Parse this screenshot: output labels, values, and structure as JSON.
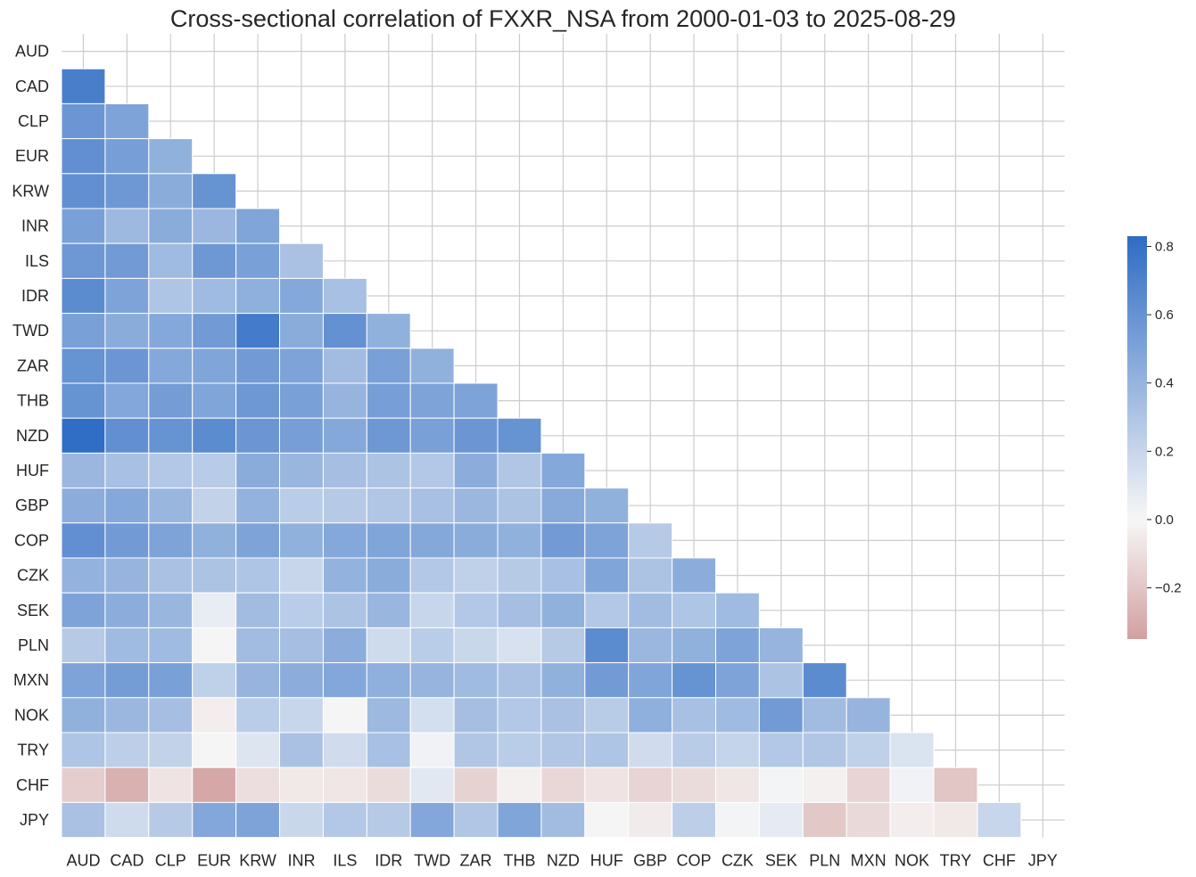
{
  "chart_data": {
    "type": "heatmap",
    "title": "Cross-sectional correlation of FXXR_NSA from 2000-01-03 to 2025-08-29",
    "labels": [
      "AUD",
      "CAD",
      "CLP",
      "EUR",
      "KRW",
      "INR",
      "ILS",
      "IDR",
      "TWD",
      "ZAR",
      "THB",
      "NZD",
      "HUF",
      "GBP",
      "COP",
      "CZK",
      "SEK",
      "PLN",
      "MXN",
      "NOK",
      "TRY",
      "CHF",
      "JPY"
    ],
    "mask": "upper triangle including diagonal",
    "grid": true,
    "colorbar": {
      "position": "right",
      "range": [
        -0.35,
        0.83
      ],
      "ticks": [
        -0.2,
        0.0,
        0.2,
        0.4,
        0.6,
        0.8
      ],
      "tick_labels": [
        "−0.2",
        "0.0",
        "0.2",
        "0.4",
        "0.6",
        "0.8"
      ],
      "colors": {
        "negative": "#d2a0a0",
        "zero": "#f7f7f7",
        "positive": "#2e6cc4"
      }
    },
    "rows": [
      [],
      [
        0.72
      ],
      [
        0.58,
        0.5
      ],
      [
        0.62,
        0.53,
        0.42
      ],
      [
        0.62,
        0.57,
        0.45,
        0.6
      ],
      [
        0.52,
        0.37,
        0.45,
        0.38,
        0.49
      ],
      [
        0.57,
        0.55,
        0.36,
        0.57,
        0.52,
        0.32
      ],
      [
        0.64,
        0.5,
        0.3,
        0.36,
        0.43,
        0.47,
        0.33
      ],
      [
        0.52,
        0.45,
        0.47,
        0.55,
        0.74,
        0.45,
        0.61,
        0.42
      ],
      [
        0.6,
        0.58,
        0.47,
        0.49,
        0.55,
        0.5,
        0.35,
        0.52,
        0.42
      ],
      [
        0.6,
        0.48,
        0.54,
        0.49,
        0.57,
        0.52,
        0.4,
        0.53,
        0.5,
        0.5
      ],
      [
        0.82,
        0.62,
        0.6,
        0.64,
        0.58,
        0.53,
        0.47,
        0.57,
        0.52,
        0.58,
        0.6
      ],
      [
        0.38,
        0.33,
        0.28,
        0.26,
        0.45,
        0.39,
        0.34,
        0.31,
        0.28,
        0.44,
        0.29,
        0.47
      ],
      [
        0.44,
        0.47,
        0.39,
        0.22,
        0.41,
        0.25,
        0.27,
        0.29,
        0.33,
        0.38,
        0.31,
        0.46,
        0.42
      ],
      [
        0.62,
        0.55,
        0.5,
        0.42,
        0.5,
        0.42,
        0.47,
        0.49,
        0.47,
        0.45,
        0.42,
        0.55,
        0.5,
        0.27
      ],
      [
        0.41,
        0.4,
        0.32,
        0.31,
        0.3,
        0.2,
        0.41,
        0.45,
        0.28,
        0.23,
        0.27,
        0.33,
        0.49,
        0.31,
        0.44
      ],
      [
        0.5,
        0.44,
        0.39,
        0.06,
        0.35,
        0.25,
        0.31,
        0.39,
        0.2,
        0.28,
        0.34,
        0.42,
        0.28,
        0.35,
        0.3,
        0.36
      ],
      [
        0.27,
        0.36,
        0.36,
        0.01,
        0.35,
        0.34,
        0.44,
        0.17,
        0.25,
        0.19,
        0.13,
        0.27,
        0.64,
        0.38,
        0.42,
        0.5,
        0.4
      ],
      [
        0.5,
        0.54,
        0.52,
        0.23,
        0.4,
        0.44,
        0.48,
        0.43,
        0.4,
        0.36,
        0.32,
        0.42,
        0.55,
        0.49,
        0.6,
        0.5,
        0.31,
        0.64
      ],
      [
        0.42,
        0.38,
        0.34,
        -0.04,
        0.25,
        0.2,
        0.01,
        0.37,
        0.15,
        0.34,
        0.28,
        0.32,
        0.26,
        0.43,
        0.33,
        0.36,
        0.55,
        0.35,
        0.4
      ],
      [
        0.3,
        0.24,
        0.22,
        0.01,
        0.11,
        0.32,
        0.16,
        0.33,
        0.03,
        0.29,
        0.25,
        0.29,
        0.3,
        0.16,
        0.26,
        0.21,
        0.28,
        0.29,
        0.23,
        0.12
      ],
      [
        -0.17,
        -0.28,
        -0.08,
        -0.32,
        -0.1,
        -0.06,
        -0.07,
        -0.11,
        0.09,
        -0.15,
        -0.03,
        -0.13,
        -0.08,
        -0.14,
        -0.11,
        -0.07,
        0.02,
        -0.03,
        -0.14,
        0.03,
        -0.2
      ],
      [
        0.32,
        0.17,
        0.27,
        0.48,
        0.5,
        0.19,
        0.28,
        0.27,
        0.48,
        0.29,
        0.49,
        0.35,
        0.01,
        -0.05,
        0.24,
        0.02,
        0.07,
        -0.19,
        -0.12,
        -0.04,
        -0.06,
        0.2
      ]
    ]
  }
}
